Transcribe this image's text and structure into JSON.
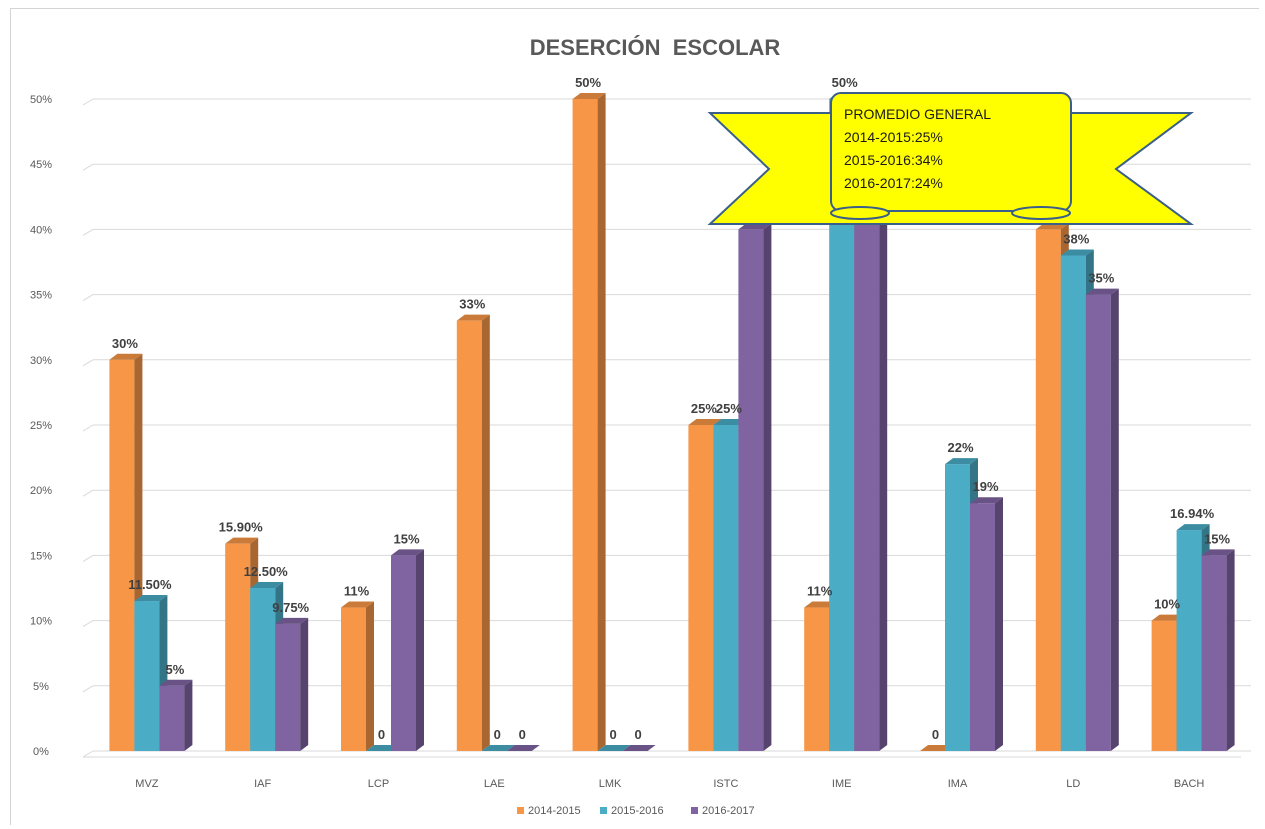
{
  "chart_data": {
    "type": "bar",
    "title": "DESERCIÓN  ESCOLAR",
    "xlabel": "",
    "ylabel": "",
    "ylim": [
      0,
      50
    ],
    "y_ticks": [
      "0%",
      "5%",
      "10%",
      "15%",
      "20%",
      "25%",
      "30%",
      "35%",
      "40%",
      "45%",
      "50%"
    ],
    "grid": true,
    "legend_position": "bottom",
    "categories": [
      "MVZ",
      "IAF",
      "LCP",
      "LAE",
      "LMK",
      "ISTC",
      "IME",
      "IMA",
      "LD",
      "BACH"
    ],
    "series": [
      {
        "name": "2014-2015",
        "color": "#f79646",
        "values": [
          30,
          15.9,
          11,
          33,
          50,
          25,
          11,
          0,
          40,
          10
        ],
        "labels": [
          "30%",
          "15.90%",
          "11%",
          "33%",
          "50%",
          "25%",
          "11%",
          "0",
          "",
          "10%"
        ]
      },
      {
        "name": "2015-2016",
        "color": "#4bacc6",
        "values": [
          11.5,
          12.5,
          0,
          0,
          0,
          25,
          50,
          22,
          38,
          16.94
        ],
        "labels": [
          "11.50%",
          "12.50%",
          "0",
          "0",
          "0",
          "25%",
          "50%",
          "22%",
          "38%",
          "16.94%"
        ]
      },
      {
        "name": "2016-2017",
        "color": "#8064a2",
        "values": [
          5,
          9.75,
          15,
          0,
          0,
          40,
          42,
          19,
          35,
          15
        ],
        "labels": [
          "5%",
          "9.75%",
          "15%",
          "0",
          "0",
          "",
          "",
          "19%",
          "35%",
          "15%"
        ]
      }
    ],
    "annotation": {
      "lines": [
        "PROMEDIO GENERAL",
        "2014-2015:25%",
        "2015-2016:34%",
        "2016-2017:24%"
      ],
      "fill": "#ffff00",
      "stroke": "#3a5f8a"
    }
  }
}
